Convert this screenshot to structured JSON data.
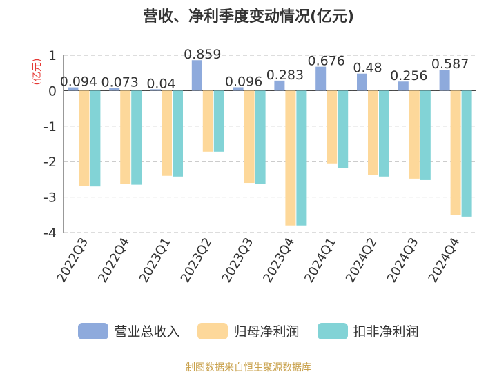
{
  "chart_data": {
    "type": "bar",
    "title": "营收、净利季度变动情况(亿元)",
    "ylabel": "(亿元)",
    "xlabel": "",
    "ylim": [
      -4,
      1
    ],
    "yticks": [
      1,
      0,
      -1,
      -2,
      -3,
      -4
    ],
    "grid": true,
    "legend_position": "bottom",
    "categories": [
      "2022Q3",
      "2022Q4",
      "2023Q1",
      "2023Q2",
      "2023Q3",
      "2023Q4",
      "2024Q1",
      "2024Q2",
      "2024Q3",
      "2024Q4"
    ],
    "series": [
      {
        "name": "营业总收入",
        "color": "#8eaadc",
        "values": [
          0.094,
          0.073,
          0.04,
          0.859,
          0.096,
          0.283,
          0.676,
          0.48,
          0.256,
          0.587
        ],
        "data_labels": [
          "0.094",
          "0.073",
          "0.04",
          "0.859",
          "0.096",
          "0.283",
          "0.676",
          "0.48",
          "0.256",
          "0.587"
        ]
      },
      {
        "name": "归母净利润",
        "color": "#fdd89a",
        "values": [
          -2.68,
          -2.62,
          -2.4,
          -1.72,
          -2.6,
          -3.8,
          -2.05,
          -2.38,
          -2.48,
          -3.5
        ]
      },
      {
        "name": "扣非净利润",
        "color": "#82d3d6",
        "values": [
          -2.7,
          -2.65,
          -2.42,
          -1.72,
          -2.62,
          -3.8,
          -2.18,
          -2.42,
          -2.52,
          -3.55
        ]
      }
    ]
  },
  "footer": "制图数据来自恒生聚源数据库"
}
